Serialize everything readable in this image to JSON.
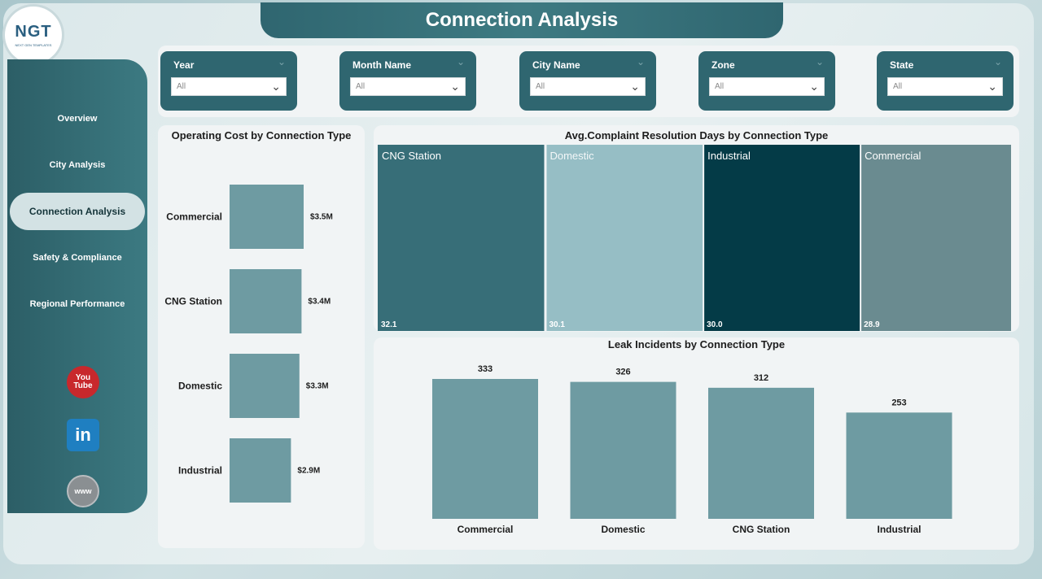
{
  "header": {
    "title": "Connection Analysis"
  },
  "logo": {
    "mark": "NGT",
    "tagline": "NEXT GEN TEMPLATES"
  },
  "sidebar": {
    "items": [
      {
        "label": "Overview",
        "active": false
      },
      {
        "label": "City Analysis",
        "active": false
      },
      {
        "label": "Connection Analysis",
        "active": true
      },
      {
        "label": "Safety & Compliance",
        "active": false
      },
      {
        "label": "Regional Performance",
        "active": false
      }
    ],
    "social": {
      "youtube_top": "You",
      "youtube_bottom": "Tube",
      "linkedin": "in",
      "website": "www"
    }
  },
  "filters": [
    {
      "label": "Year",
      "value": "All"
    },
    {
      "label": "Month Name",
      "value": "All"
    },
    {
      "label": "City Name",
      "value": "All"
    },
    {
      "label": "Zone",
      "value": "All"
    },
    {
      "label": "State",
      "value": "All"
    }
  ],
  "chart_data": [
    {
      "type": "bar",
      "orientation": "horizontal",
      "title": "Operating Cost by Connection Type",
      "categories": [
        "Commercial",
        "CNG Station",
        "Domestic",
        "Industrial"
      ],
      "values": [
        3.5,
        3.4,
        3.3,
        2.9
      ],
      "value_labels": [
        "$3.5M",
        "$3.4M",
        "$3.3M",
        "$2.9M"
      ],
      "unit": "M",
      "color": "#6e9ba2"
    },
    {
      "type": "treemap",
      "title": "Avg.Complaint Resolution Days by Connection Type",
      "categories": [
        "CNG Station",
        "Domestic",
        "Industrial",
        "Commercial"
      ],
      "values": [
        32.1,
        30.1,
        30.0,
        28.9
      ],
      "value_labels": [
        "32.1",
        "30.1",
        "30.0",
        "28.9"
      ],
      "colors": [
        "#376e78",
        "#96bec5",
        "#043b47",
        "#6a8b90"
      ]
    },
    {
      "type": "bar",
      "orientation": "vertical",
      "title": "Leak Incidents by Connection Type",
      "categories": [
        "Commercial",
        "Domestic",
        "CNG Station",
        "Industrial"
      ],
      "values": [
        333,
        326,
        312,
        253
      ],
      "color": "#6e9ba2"
    }
  ]
}
